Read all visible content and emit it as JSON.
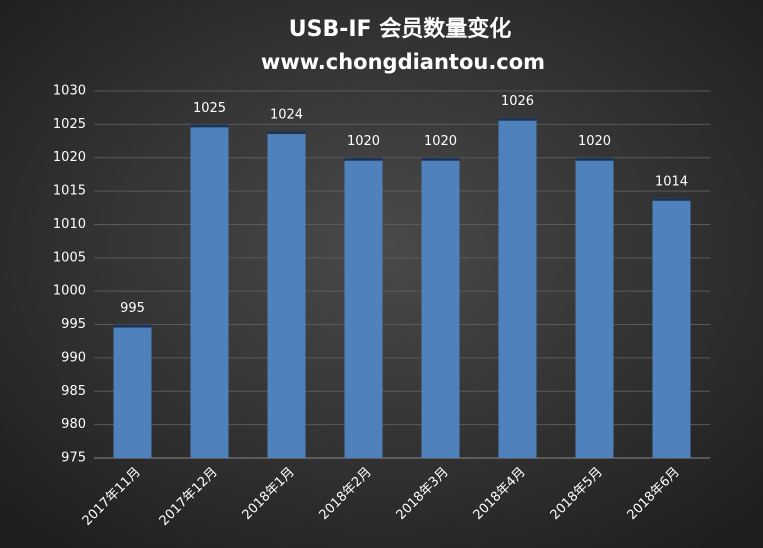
{
  "chart_data": {
    "type": "bar",
    "title": "USB-IF 会员数量变化",
    "subtitle": "www.chongdiantou.com",
    "categories": [
      "2017年11月",
      "2017年12月",
      "2018年1月",
      "2018年2月",
      "2018年3月",
      "2018年4月",
      "2018年5月",
      "2018年6月"
    ],
    "values": [
      995,
      1025,
      1024,
      1020,
      1020,
      1026,
      1020,
      1014
    ],
    "color": "#4f81bd",
    "ylim": [
      975,
      1030
    ],
    "yticks": [
      975,
      980,
      985,
      990,
      995,
      1000,
      1005,
      1010,
      1015,
      1020,
      1025,
      1030
    ],
    "grid": true
  }
}
